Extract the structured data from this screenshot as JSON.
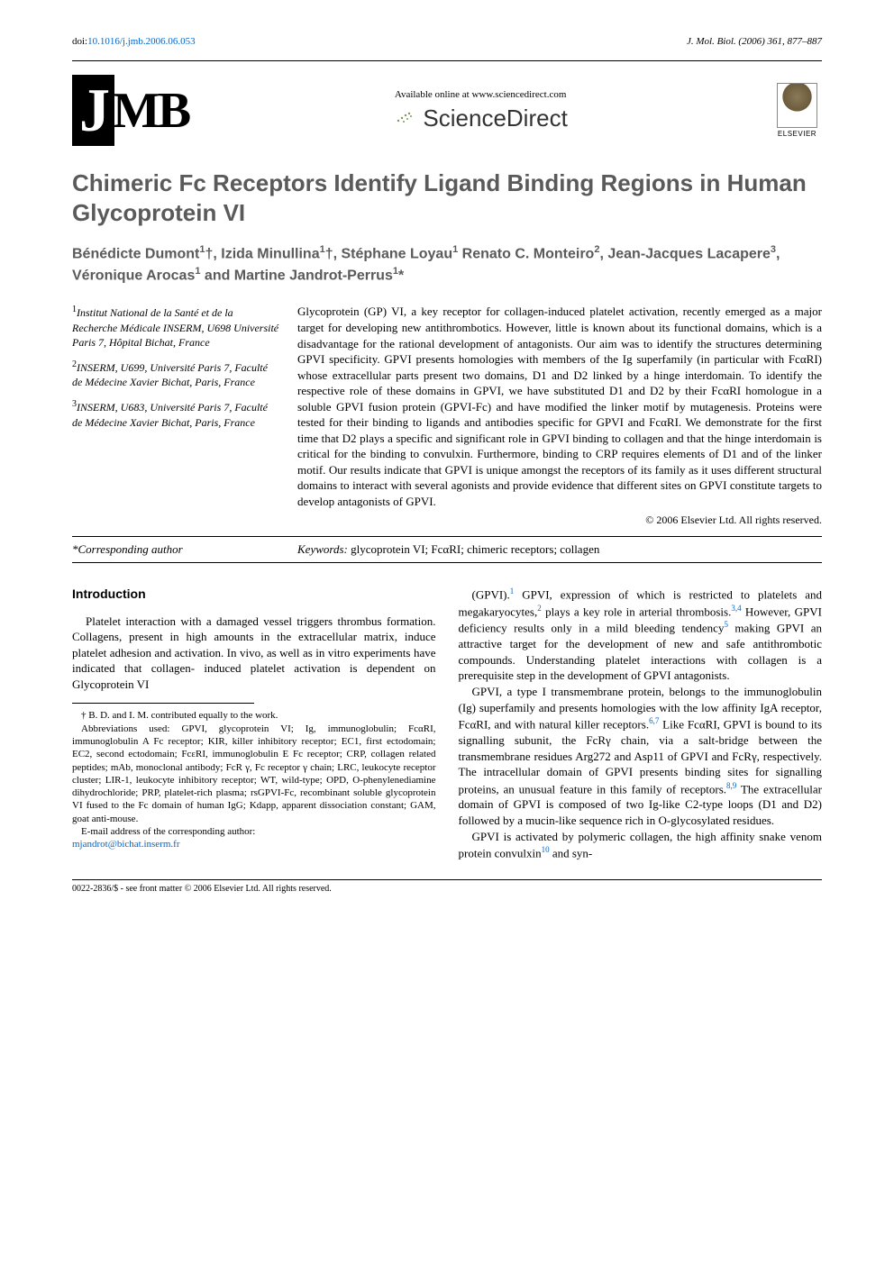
{
  "header": {
    "doi_prefix": "doi:",
    "doi": "10.1016/j.jmb.2006.06.053",
    "journal_ref": "J. Mol. Biol. (2006) 361, 877–887"
  },
  "logos": {
    "jmb": "JMB",
    "available_text": "Available online at www.sciencedirect.com",
    "sciencedirect": "ScienceDirect",
    "elsevier": "ELSEVIER"
  },
  "title": "Chimeric Fc Receptors Identify Ligand Binding Regions in Human Glycoprotein VI",
  "authors_html": "Bénédicte Dumont<sup>1</sup>†, Izida Minullina<sup>1</sup>†, Stéphane Loyau<sup>1</sup> Renato C. Monteiro<sup>2</sup>, Jean-Jacques Lacapere<sup>3</sup>, Véronique Arocas<sup>1</sup> and Martine Jandrot-Perrus<sup>1</sup>*",
  "affiliations": [
    {
      "sup": "1",
      "text": "Institut National de la Santé et de la Recherche Médicale INSERM, U698 Université Paris 7, Hôpital Bichat, France"
    },
    {
      "sup": "2",
      "text": "INSERM, U699, Université Paris 7, Faculté de Médecine Xavier Bichat, Paris, France"
    },
    {
      "sup": "3",
      "text": "INSERM, U683, Université Paris 7, Faculté de Médecine Xavier Bichat, Paris, France"
    }
  ],
  "abstract": "Glycoprotein (GP) VI, a key receptor for collagen-induced platelet activation, recently emerged as a major target for developing new antithrombotics. However, little is known about its functional domains, which is a disadvantage for the rational development of antagonists. Our aim was to identify the structures determining GPVI specificity. GPVI presents homologies with members of the Ig superfamily (in particular with FcαRI) whose extracellular parts present two domains, D1 and D2 linked by a hinge interdomain. To identify the respective role of these domains in GPVI, we have substituted D1 and D2 by their FcαRI homologue in a soluble GPVI fusion protein (GPVI-Fc) and have modified the linker motif by mutagenesis. Proteins were tested for their binding to ligands and antibodies specific for GPVI and FcαRI. We demonstrate for the first time that D2 plays a specific and significant role in GPVI binding to collagen and that the hinge interdomain is critical for the binding to convulxin. Furthermore, binding to CRP requires elements of D1 and of the linker motif. Our results indicate that GPVI is unique amongst the receptors of its family as it uses different structural domains to interact with several agonists and provide evidence that different sites on GPVI constitute targets to develop antagonists of GPVI.",
  "copyright": "© 2006 Elsevier Ltd. All rights reserved.",
  "corresponding": "*Corresponding author",
  "keywords_label": "Keywords:",
  "keywords": "glycoprotein VI; FcαRI; chimeric receptors; collagen",
  "intro_heading": "Introduction",
  "col1_para1": "Platelet interaction with a damaged vessel triggers thrombus formation. Collagens, present in high amounts in the extracellular matrix, induce platelet adhesion and activation. In vivo, as well as in vitro experiments have indicated that collagen- induced platelet activation is dependent on Glycoprotein VI",
  "footnote_contrib": "† B. D. and I. M. contributed equally to the work.",
  "footnote_abbrev": "Abbreviations used: GPVI, glycoprotein VI; Ig, immunoglobulin; FcαRI, immunoglobulin A Fc receptor; KIR, killer inhibitory receptor; EC1, first ectodomain; EC2, second ectodomain; FcεRI, immunoglobulin E Fc receptor; CRP, collagen related peptides; mAb, monoclonal antibody; FcR γ, Fc receptor γ chain; LRC, leukocyte receptor cluster; LIR-1, leukocyte inhibitory receptor; WT, wild-type; OPD, O-phenylenediamine dihydrochloride; PRP, platelet-rich plasma; rsGPVI-Fc, recombinant soluble glycoprotein VI fused to the Fc domain of human IgG; Kdapp, apparent dissociation constant; GAM, goat anti-mouse.",
  "footnote_email_label": "E-mail address of the corresponding author:",
  "footnote_email": "mjandrot@bichat.inserm.fr",
  "col2_para1_a": "(GPVI).",
  "col2_para1_b": " GPVI, expression of which is restricted to platelets and megakaryocytes,",
  "col2_para1_c": " plays a key role in arterial thrombosis.",
  "col2_para1_d": " However, GPVI deficiency results only in a mild bleeding tendency",
  "col2_para1_e": " making GPVI an attractive target for the development of new and safe antithrombotic compounds. Understanding platelet interactions with collagen is a prerequisite step in the development of GPVI antagonists.",
  "col2_para2_a": "GPVI, a type I transmembrane protein, belongs to the immunoglobulin (Ig) superfamily and presents homologies with the low affinity IgA receptor, FcαRI, and with natural killer receptors.",
  "col2_para2_b": " Like FcαRI, GPVI is bound to its signalling subunit, the FcRγ chain, via a salt-bridge between the transmembrane residues Arg272 and Asp11 of GPVI and FcRγ, respectively. The intracellular domain of GPVI presents binding sites for signalling proteins, an unusual feature in this family of receptors.",
  "col2_para2_c": " The extracellular domain of GPVI is composed of two Ig-like C2-type loops (D1 and D2) followed by a mucin-like sequence rich in O-glycosylated residues.",
  "col2_para3_a": "GPVI is activated by polymeric collagen, the high affinity snake venom protein convulxin",
  "col2_para3_b": " and syn-",
  "refs": {
    "r1": "1",
    "r2": "2",
    "r34": "3,4",
    "r5": "5",
    "r67": "6,7",
    "r89": "8,9",
    "r10": "10"
  },
  "bottom": "0022-2836/$ - see front matter © 2006 Elsevier Ltd. All rights reserved.",
  "colors": {
    "link": "#0066cc",
    "heading_gray": "#5a5a5a",
    "text": "#000000"
  }
}
